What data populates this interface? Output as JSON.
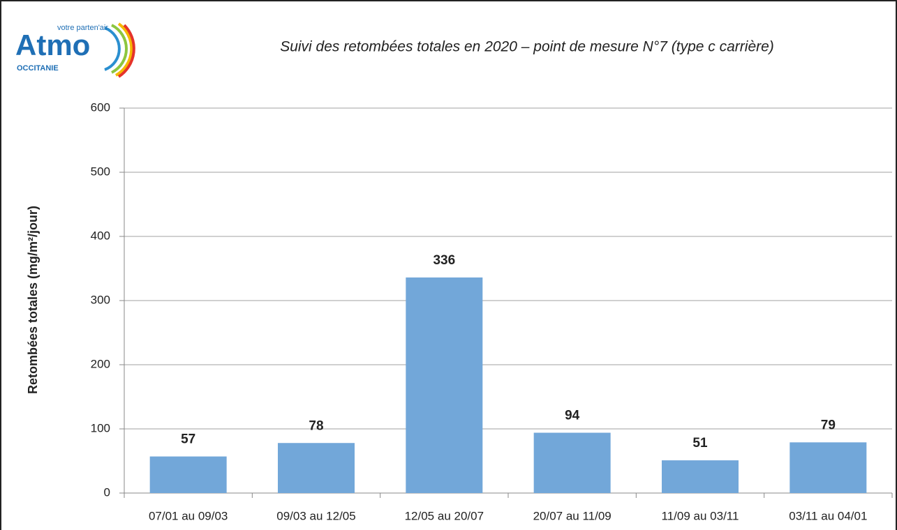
{
  "logo": {
    "name": "Atmo",
    "tagline": "votre parten'air",
    "region": "OCCITANIE"
  },
  "chart_data": {
    "type": "bar",
    "title": "Suivi des retombées totales en 2020 – point de mesure N°7 (type c carrière)",
    "y_label": "Retombées totales (mg/m²/jour)",
    "categories": [
      "07/01 au 09/03",
      "09/03 au 12/05",
      "12/05 au 20/07",
      "20/07 au 11/09",
      "11/09 au 03/11",
      "03/11 au 04/01"
    ],
    "values": [
      57,
      78,
      336,
      94,
      51,
      79
    ],
    "color": "#72a7d9",
    "ylim": [
      0,
      600
    ],
    "yticks": [
      0,
      100,
      200,
      300,
      400,
      500,
      600
    ],
    "grid": true
  }
}
